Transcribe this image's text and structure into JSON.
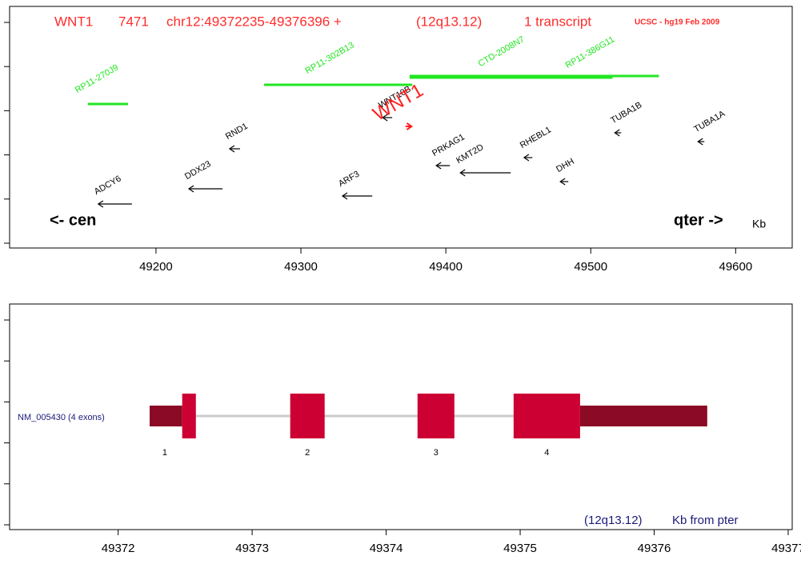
{
  "chart_data": [
    {
      "type": "gene-map",
      "header": [
        "WNT1",
        "7471",
        "chr12:49372235-49376396 +",
        "(12q13.12)",
        "1 transcript"
      ],
      "source": "UCSC - hg19 Feb 2009",
      "left_label": "<- cen",
      "right_label": "qter ->",
      "unit": "Kb",
      "xlim": [
        49099,
        49639
      ],
      "xticks": [
        49200,
        49300,
        49400,
        49500,
        49600
      ],
      "genes": [
        {
          "name": "ADCY6",
          "start": 49160.2,
          "end": 49183.4,
          "strand": "-"
        },
        {
          "name": "DDX23",
          "start": 49222.7,
          "end": 49245.9,
          "strand": "-"
        },
        {
          "name": "RND1",
          "start": 49250.8,
          "end": 49258,
          "strand": "-"
        },
        {
          "name": "ARF3",
          "start": 49328.7,
          "end": 49349.2,
          "strand": "-"
        },
        {
          "name": "WNT10B",
          "start": 49356.4,
          "end": 49363,
          "strand": "-"
        },
        {
          "name": "WNT1",
          "start": 49372.2,
          "end": 49376.4,
          "strand": "+"
        },
        {
          "name": "PRKAG1",
          "start": 49393.4,
          "end": 49402.8,
          "strand": "-"
        },
        {
          "name": "KMT2D",
          "start": 49410,
          "end": 49444.8,
          "strand": "-"
        },
        {
          "name": "RHEBL1",
          "start": 49454,
          "end": 49459.7,
          "strand": "-"
        },
        {
          "name": "DHH",
          "start": 49479,
          "end": 49484.5,
          "strand": "-"
        },
        {
          "name": "TUBA1B",
          "start": 49516.6,
          "end": 49521,
          "strand": "-"
        },
        {
          "name": "TUBA1A",
          "start": 49574,
          "end": 49578.4,
          "strand": "-"
        }
      ],
      "clones": [
        {
          "name": "RP11-270J9",
          "start": 49153,
          "end": 49180.7
        },
        {
          "name": "RP11-302B13",
          "start": 49274.6,
          "end": 49376.8
        },
        {
          "name": "CTD-2008N7",
          "start": 49375,
          "end": 49515
        },
        {
          "name": "RP11-386G11",
          "start": 49375,
          "end": 49547
        }
      ],
      "gene_color": "#000000",
      "focus_color": "#ff2020",
      "clone_color": "#22e622"
    },
    {
      "type": "transcript",
      "transcript": "NM_005430 (4 exons)",
      "location": "(12q13.12)",
      "unit": "Kb from pter",
      "xlim": [
        49371.19,
        49377.03
      ],
      "xticks": [
        49372,
        49373,
        49374,
        49375,
        49376,
        49377
      ],
      "exons": [
        {
          "label": "1",
          "start": 49372.235,
          "end": 49372.58,
          "cds_start": 49372.478,
          "cds_end": 49372.58
        },
        {
          "label": "2",
          "start": 49373.284,
          "end": 49373.541,
          "cds_start": 49373.284,
          "cds_end": 49373.541
        },
        {
          "label": "3",
          "start": 49374.234,
          "end": 49374.509,
          "cds_start": 49374.234,
          "cds_end": 49374.509
        },
        {
          "label": "4",
          "start": 49374.951,
          "end": 49376.396,
          "cds_start": 49374.951,
          "cds_end": 49375.447
        }
      ],
      "utr_color": "#8b0a25",
      "cds_color": "#cc0033",
      "intron_color": "#cccccc"
    }
  ]
}
